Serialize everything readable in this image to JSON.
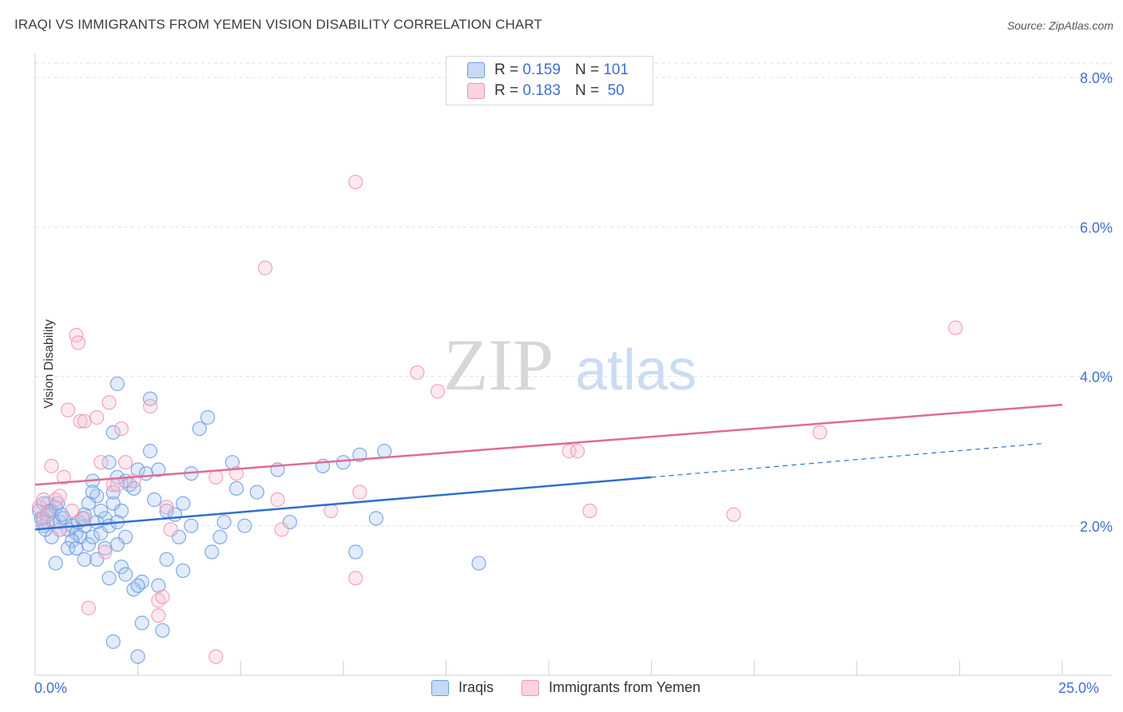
{
  "title": "IRAQI VS IMMIGRANTS FROM YEMEN VISION DISABILITY CORRELATION CHART",
  "source": "Source: ZipAtlas.com",
  "watermark": {
    "zip": "ZIP",
    "atlas": "atlas"
  },
  "legend": {
    "r_label": "R =",
    "n_label": "N =",
    "series": [
      {
        "r": "0.159",
        "n": "101"
      },
      {
        "r": "0.183",
        "n": "50"
      }
    ]
  },
  "chart_data": {
    "type": "scatter",
    "title": "IRAQI VS IMMIGRANTS FROM YEMEN VISION DISABILITY CORRELATION CHART",
    "xlabel": "",
    "ylabel": "Vision Disability",
    "xlim": [
      0,
      25
    ],
    "ylim": [
      0,
      8.2
    ],
    "x_tick_labels": [
      "0.0%",
      "25.0%"
    ],
    "y_ticks": [
      2,
      4,
      6,
      8
    ],
    "y_tick_labels": [
      "2.0%",
      "4.0%",
      "6.0%",
      "8.0%"
    ],
    "grid": true,
    "legend_position": "top-center",
    "series": [
      {
        "name": "Iraqis",
        "color": "#6b9be0",
        "fill": "#a9c6f2",
        "r": 0.159,
        "n": 101,
        "trend": {
          "x0": 0,
          "y0": 1.95,
          "x1": 15,
          "y1": 2.65,
          "dashed_to_x": 24.5,
          "dashed_to_y": 3.1
        },
        "points": [
          [
            0.1,
            2.2
          ],
          [
            0.2,
            2.1
          ],
          [
            0.3,
            2.3
          ],
          [
            0.2,
            2.0
          ],
          [
            0.4,
            2.2
          ],
          [
            0.3,
            2.15
          ],
          [
            0.5,
            2.25
          ],
          [
            0.6,
            2.05
          ],
          [
            0.4,
            1.85
          ],
          [
            0.7,
            2.1
          ],
          [
            0.8,
            1.95
          ],
          [
            0.9,
            2.0
          ],
          [
            1.0,
            1.9
          ],
          [
            1.1,
            1.85
          ],
          [
            1.2,
            2.0
          ],
          [
            0.9,
            1.8
          ],
          [
            1.3,
            1.75
          ],
          [
            1.4,
            1.85
          ],
          [
            1.5,
            2.05
          ],
          [
            1.6,
            1.9
          ],
          [
            1.7,
            2.1
          ],
          [
            1.8,
            2.0
          ],
          [
            1.9,
            2.3
          ],
          [
            2.0,
            2.05
          ],
          [
            2.1,
            2.2
          ],
          [
            2.2,
            1.85
          ],
          [
            1.5,
            2.4
          ],
          [
            1.6,
            2.2
          ],
          [
            1.3,
            2.3
          ],
          [
            1.2,
            2.15
          ],
          [
            1.8,
            2.85
          ],
          [
            2.0,
            2.65
          ],
          [
            1.9,
            2.45
          ],
          [
            2.3,
            2.55
          ],
          [
            2.2,
            2.6
          ],
          [
            2.4,
            2.5
          ],
          [
            2.5,
            2.75
          ],
          [
            2.7,
            2.7
          ],
          [
            2.8,
            3.0
          ],
          [
            2.9,
            2.35
          ],
          [
            3.0,
            2.75
          ],
          [
            3.2,
            2.2
          ],
          [
            3.4,
            2.15
          ],
          [
            3.6,
            2.3
          ],
          [
            3.8,
            2.7
          ],
          [
            3.5,
            1.85
          ],
          [
            3.8,
            2.0
          ],
          [
            4.0,
            3.3
          ],
          [
            4.2,
            3.45
          ],
          [
            4.3,
            1.65
          ],
          [
            4.5,
            1.85
          ],
          [
            4.6,
            2.05
          ],
          [
            4.8,
            2.85
          ],
          [
            4.9,
            2.5
          ],
          [
            5.1,
            2.0
          ],
          [
            5.4,
            2.45
          ],
          [
            5.9,
            2.75
          ],
          [
            6.2,
            2.05
          ],
          [
            7.0,
            2.8
          ],
          [
            7.5,
            2.85
          ],
          [
            7.9,
            2.95
          ],
          [
            8.5,
            3.0
          ],
          [
            8.3,
            2.1
          ],
          [
            7.8,
            1.65
          ],
          [
            3.6,
            1.4
          ],
          [
            3.2,
            1.55
          ],
          [
            3.0,
            1.2
          ],
          [
            2.6,
            1.25
          ],
          [
            2.4,
            1.15
          ],
          [
            2.5,
            1.2
          ],
          [
            2.1,
            1.45
          ],
          [
            2.2,
            1.35
          ],
          [
            1.8,
            1.3
          ],
          [
            1.5,
            1.55
          ],
          [
            1.2,
            1.55
          ],
          [
            0.5,
            1.5
          ],
          [
            0.8,
            1.7
          ],
          [
            1.0,
            1.7
          ],
          [
            1.7,
            1.7
          ],
          [
            2.0,
            1.75
          ],
          [
            2.6,
            0.7
          ],
          [
            3.1,
            0.6
          ],
          [
            1.9,
            0.45
          ],
          [
            2.5,
            0.25
          ],
          [
            2.8,
            3.7
          ],
          [
            2.0,
            3.9
          ],
          [
            1.9,
            3.25
          ],
          [
            1.4,
            2.6
          ],
          [
            1.4,
            2.45
          ],
          [
            0.6,
            1.95
          ],
          [
            0.3,
            2.05
          ],
          [
            10.8,
            1.5
          ],
          [
            0.2,
            2.3
          ],
          [
            0.15,
            2.1
          ],
          [
            0.35,
            2.2
          ],
          [
            0.45,
            2.05
          ],
          [
            0.55,
            2.3
          ],
          [
            0.25,
            1.95
          ],
          [
            0.65,
            2.15
          ],
          [
            1.05,
            2.05
          ],
          [
            1.15,
            2.1
          ]
        ]
      },
      {
        "name": "Immigrants from Yemen",
        "color": "#ee94b0",
        "fill": "#f7c3d3",
        "r": 0.183,
        "n": 50,
        "trend": {
          "x0": 0,
          "y0": 2.55,
          "x1": 25,
          "y1": 3.62
        },
        "points": [
          [
            0.1,
            2.25
          ],
          [
            0.2,
            2.35
          ],
          [
            0.3,
            2.15
          ],
          [
            0.4,
            2.8
          ],
          [
            0.5,
            2.35
          ],
          [
            0.6,
            2.4
          ],
          [
            0.7,
            2.65
          ],
          [
            0.8,
            3.55
          ],
          [
            0.9,
            2.2
          ],
          [
            1.0,
            4.55
          ],
          [
            1.05,
            4.45
          ],
          [
            1.1,
            3.4
          ],
          [
            1.2,
            3.4
          ],
          [
            1.5,
            3.45
          ],
          [
            1.6,
            2.85
          ],
          [
            1.8,
            3.65
          ],
          [
            1.9,
            2.55
          ],
          [
            2.1,
            3.3
          ],
          [
            2.2,
            2.85
          ],
          [
            2.4,
            2.6
          ],
          [
            2.8,
            3.6
          ],
          [
            1.7,
            1.65
          ],
          [
            3.2,
            2.25
          ],
          [
            3.3,
            1.95
          ],
          [
            3.0,
            1.0
          ],
          [
            3.1,
            1.05
          ],
          [
            3.0,
            0.8
          ],
          [
            4.4,
            2.65
          ],
          [
            4.9,
            2.7
          ],
          [
            5.6,
            5.45
          ],
          [
            5.9,
            2.35
          ],
          [
            6.0,
            1.95
          ],
          [
            7.2,
            2.2
          ],
          [
            7.8,
            6.6
          ],
          [
            7.8,
            1.3
          ],
          [
            7.9,
            2.45
          ],
          [
            9.3,
            4.05
          ],
          [
            9.8,
            3.8
          ],
          [
            13.0,
            3.0
          ],
          [
            13.2,
            3.0
          ],
          [
            13.5,
            2.2
          ],
          [
            17.0,
            2.15
          ],
          [
            19.1,
            3.25
          ],
          [
            22.4,
            4.65
          ],
          [
            1.3,
            0.9
          ],
          [
            4.4,
            0.25
          ],
          [
            0.2,
            2.05
          ],
          [
            0.6,
            1.95
          ],
          [
            2.0,
            2.55
          ],
          [
            1.2,
            2.1
          ]
        ]
      }
    ]
  }
}
